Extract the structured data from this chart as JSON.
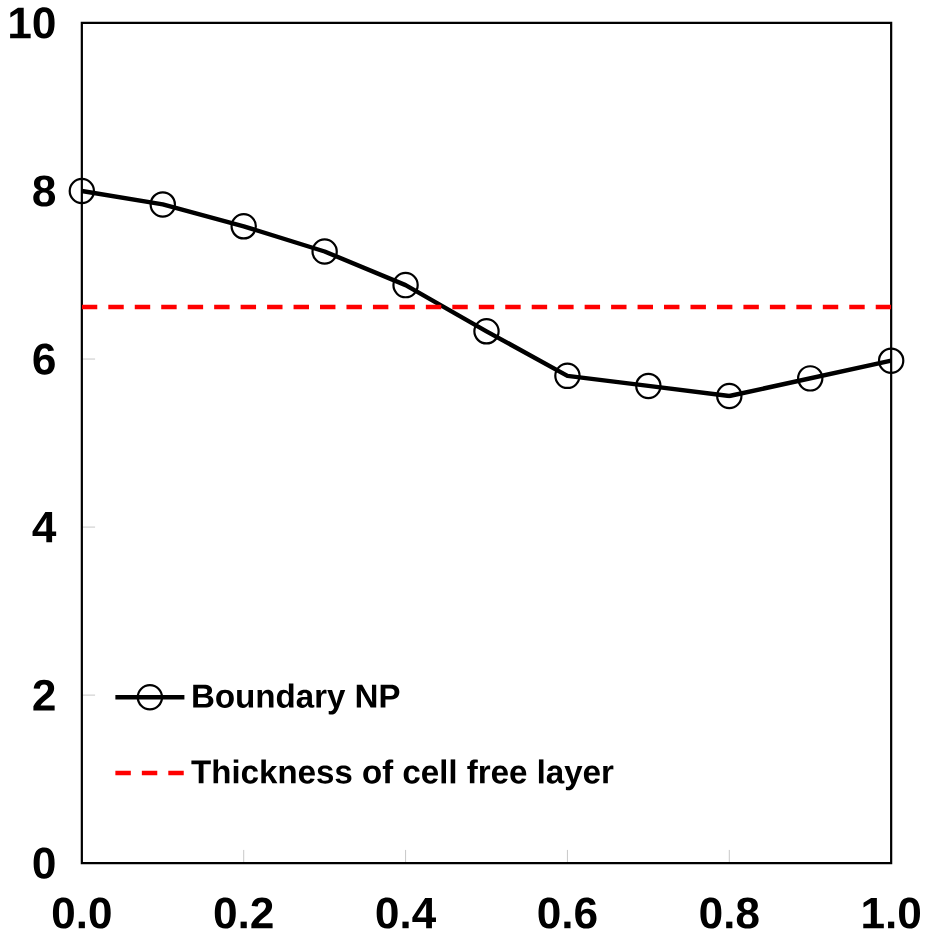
{
  "chart_data": {
    "type": "line",
    "x": [
      0.0,
      0.1,
      0.2,
      0.3,
      0.4,
      0.5,
      0.6,
      0.7,
      0.8,
      0.9,
      1.0
    ],
    "series": [
      {
        "name": "Boundary NP",
        "color": "#000000",
        "values": [
          8.0,
          7.84,
          7.58,
          7.28,
          6.88,
          6.33,
          5.8,
          5.68,
          5.56,
          5.77,
          5.98
        ]
      }
    ],
    "xlim": [
      0,
      1
    ],
    "ylim": [
      0,
      10
    ],
    "xticks": [
      {
        "value": 0,
        "label": "0.0"
      },
      {
        "value": 0.2,
        "label": "0.2"
      },
      {
        "value": 0.4,
        "label": "0.4"
      },
      {
        "value": 0.6,
        "label": "0.6"
      },
      {
        "value": 0.8,
        "label": "0.8"
      },
      {
        "value": 1,
        "label": "1.0"
      }
    ],
    "yticks": [
      0,
      2,
      4,
      6,
      8,
      10
    ],
    "ref_lines": [
      {
        "axis": "y",
        "value": 6.62,
        "label": "Thickness of cell free layer",
        "color": "#ff0000",
        "line_style": "dashed"
      }
    ],
    "marker": "circle",
    "line_style": "solid",
    "grid": false,
    "legend": "bottom left"
  }
}
